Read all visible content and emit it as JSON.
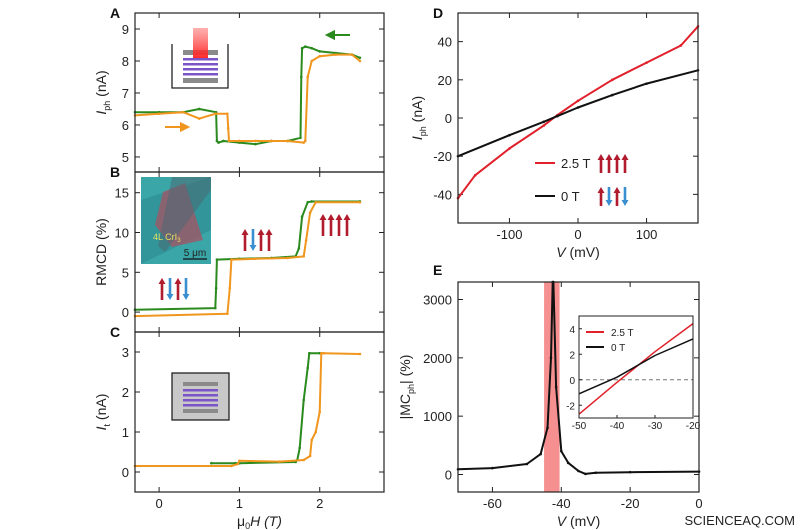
{
  "colors": {
    "green": "#2a8a1e",
    "orange": "#f0961e",
    "red": "#e0202a",
    "black": "#111111",
    "spin_up": "#b01c2e",
    "spin_down": "#3a8fd0",
    "band": "#f47c7c",
    "purple": "#7b55c8",
    "gray": "#8a8a8a"
  },
  "watermark": "SCIENCEAQ.COM",
  "chart_data": [
    {
      "panel": "A",
      "type": "line",
      "ylabel": "I",
      "ylabel_sub": "ph",
      "ylabel_unit": " (nA)",
      "xlim": [
        -0.3,
        2.8
      ],
      "ylim": [
        4.53,
        9.5
      ],
      "yticks": [
        5,
        6,
        7,
        8,
        9
      ],
      "xticks": [
        0,
        1,
        2
      ],
      "sweep_arrows": [
        "orange-right",
        "green-left"
      ],
      "series": [
        {
          "color": "green",
          "x": [
            2.5,
            2.4,
            2.2,
            2.0,
            1.9,
            1.82,
            1.78,
            1.77,
            1.76,
            1.6,
            1.4,
            1.2,
            1.0,
            0.8,
            0.74,
            0.72,
            0.71,
            0.5,
            0.3,
            0,
            -0.3
          ],
          "y": [
            8.1,
            8.2,
            8.25,
            8.3,
            8.4,
            8.45,
            8.4,
            7.5,
            5.6,
            5.5,
            5.5,
            5.4,
            5.45,
            5.5,
            5.45,
            5.5,
            6.4,
            6.5,
            6.4,
            6.4,
            6.4
          ]
        },
        {
          "color": "orange",
          "x": [
            -0.3,
            0,
            0.3,
            0.5,
            0.7,
            0.85,
            0.86,
            0.87,
            1.0,
            1.2,
            1.4,
            1.6,
            1.8,
            1.82,
            1.85,
            1.9,
            2.0,
            2.2,
            2.4,
            2.5
          ],
          "y": [
            6.3,
            6.35,
            6.4,
            6.2,
            6.35,
            6.35,
            5.9,
            5.5,
            5.5,
            5.5,
            5.5,
            5.5,
            5.45,
            5.5,
            7.5,
            8.0,
            8.15,
            8.2,
            8.2,
            8.0
          ]
        }
      ]
    },
    {
      "panel": "B",
      "type": "line",
      "ylabel": "RMCD (%)",
      "xlim": [
        -0.3,
        2.8
      ],
      "ylim": [
        -2.5,
        17.6
      ],
      "yticks": [
        0,
        5,
        10,
        15
      ],
      "xticks": [
        0,
        1,
        2
      ],
      "inset_text": "4L CrI",
      "inset_text_sub": "3",
      "scale_bar": "5 μm",
      "spin_states": [
        [
          "up",
          "down",
          "up",
          "down"
        ],
        [
          "up",
          "down",
          "up",
          "up"
        ],
        [
          "up",
          "up",
          "up",
          "up"
        ]
      ],
      "series": [
        {
          "color": "green",
          "x": [
            -0.3,
            0.7,
            0.71,
            0.72,
            1.0,
            1.4,
            1.7,
            1.74,
            1.78,
            1.85,
            1.9,
            2.5
          ],
          "y": [
            0.3,
            0.5,
            3,
            6.6,
            6.7,
            6.8,
            7.0,
            8,
            12,
            13.8,
            13.9,
            13.9
          ]
        },
        {
          "color": "orange",
          "x": [
            -0.3,
            0.85,
            0.88,
            0.9,
            1.2,
            1.6,
            1.8,
            1.83,
            1.88,
            1.95,
            2.5
          ],
          "y": [
            -0.5,
            -0.2,
            3,
            6.6,
            6.7,
            6.8,
            7.0,
            9,
            12.5,
            13.8,
            13.8
          ]
        }
      ]
    },
    {
      "panel": "C",
      "type": "line",
      "ylabel": "I",
      "ylabel_sub": "t",
      "ylabel_unit": " (nA)",
      "xlabel": "μ",
      "xlabel_sub": "0",
      "xlabel_rest": "H (T)",
      "xlim": [
        -0.3,
        2.8
      ],
      "ylim": [
        -0.5,
        3.5
      ],
      "yticks": [
        0,
        1,
        2,
        3
      ],
      "xticks": [
        0,
        1,
        2
      ],
      "series": [
        {
          "color": "green",
          "x": [
            0.65,
            0.95,
            1.0,
            1.7,
            1.72,
            1.75,
            1.8,
            1.85,
            1.87,
            2.0
          ],
          "y": [
            0.22,
            0.22,
            0.22,
            0.25,
            0.3,
            0.6,
            1.8,
            2.6,
            2.97,
            2.97
          ]
        },
        {
          "color": "orange",
          "x": [
            -0.3,
            0.9,
            0.98,
            1.0,
            1.5,
            1.8,
            1.88,
            1.9,
            1.95,
            2.0,
            2.02,
            2.05,
            2.5
          ],
          "y": [
            0.15,
            0.15,
            0.2,
            0.28,
            0.26,
            0.3,
            0.4,
            0.8,
            1.0,
            1.5,
            2.97,
            2.97,
            2.95
          ]
        }
      ]
    },
    {
      "panel": "D",
      "type": "line",
      "ylabel": "I",
      "ylabel_sub": "ph",
      "ylabel_unit": " (nA)",
      "xlabel": "V",
      "xlabel_rest": " (mV)",
      "xlim": [
        -175,
        175
      ],
      "ylim": [
        -55,
        55
      ],
      "xticks": [
        -100,
        0,
        100
      ],
      "yticks": [
        -40,
        -20,
        0,
        20,
        40
      ],
      "series": [
        {
          "name": "2.5 T",
          "color": "red",
          "spins": [
            "up",
            "up",
            "up",
            "up"
          ],
          "x": [
            -175,
            -150,
            -100,
            -50,
            -30,
            0,
            50,
            100,
            150,
            175
          ],
          "y": [
            -42,
            -30,
            -16,
            -4,
            1.5,
            9,
            20,
            29,
            38,
            48
          ]
        },
        {
          "name": "0 T",
          "color": "black",
          "spins": [
            "up",
            "down",
            "up",
            "down"
          ],
          "x": [
            -175,
            -100,
            -50,
            -30,
            0,
            50,
            100,
            175
          ],
          "y": [
            -20,
            -9,
            -2,
            1,
            5.5,
            12,
            18,
            25
          ]
        }
      ]
    },
    {
      "panel": "E",
      "type": "line",
      "ylabel": "|MC",
      "ylabel_sub": "ph",
      "ylabel_unit": "| (%)",
      "xlabel": "V",
      "xlabel_rest": " (mV)",
      "xlim": [
        -70,
        0
      ],
      "ylim": [
        -300,
        3300
      ],
      "xticks": [
        -60,
        -40,
        -20,
        0
      ],
      "yticks": [
        0,
        1000,
        2000,
        3000
      ],
      "highlight_band": [
        -45,
        -40.5
      ],
      "series": [
        {
          "color": "black",
          "x": [
            -70,
            -60,
            -50,
            -46,
            -44,
            -43,
            -42.5,
            -42.3,
            -41.5,
            -40,
            -38,
            -35,
            -33,
            -30,
            -20,
            0
          ],
          "y": [
            90,
            110,
            180,
            350,
            800,
            2000,
            3300,
            3300,
            1500,
            400,
            200,
            60,
            10,
            30,
            40,
            50
          ]
        }
      ],
      "inset": {
        "xlim": [
          -50,
          -20
        ],
        "ylim": [
          -3,
          5
        ],
        "xticks": [
          -50,
          -40,
          -30,
          -20
        ],
        "yticks": [
          -2,
          0,
          2,
          4
        ],
        "zero_line": "dashed",
        "series": [
          {
            "name": "2.5 T",
            "color": "red",
            "x": [
              -50,
              -40,
              -30,
              -20
            ],
            "y": [
              -2.7,
              -0.2,
              2.2,
              4.4
            ]
          },
          {
            "name": "0 T",
            "color": "black",
            "x": [
              -50,
              -40,
              -30,
              -20
            ],
            "y": [
              -1.1,
              0.2,
              1.9,
              3.2
            ]
          }
        ]
      }
    }
  ]
}
